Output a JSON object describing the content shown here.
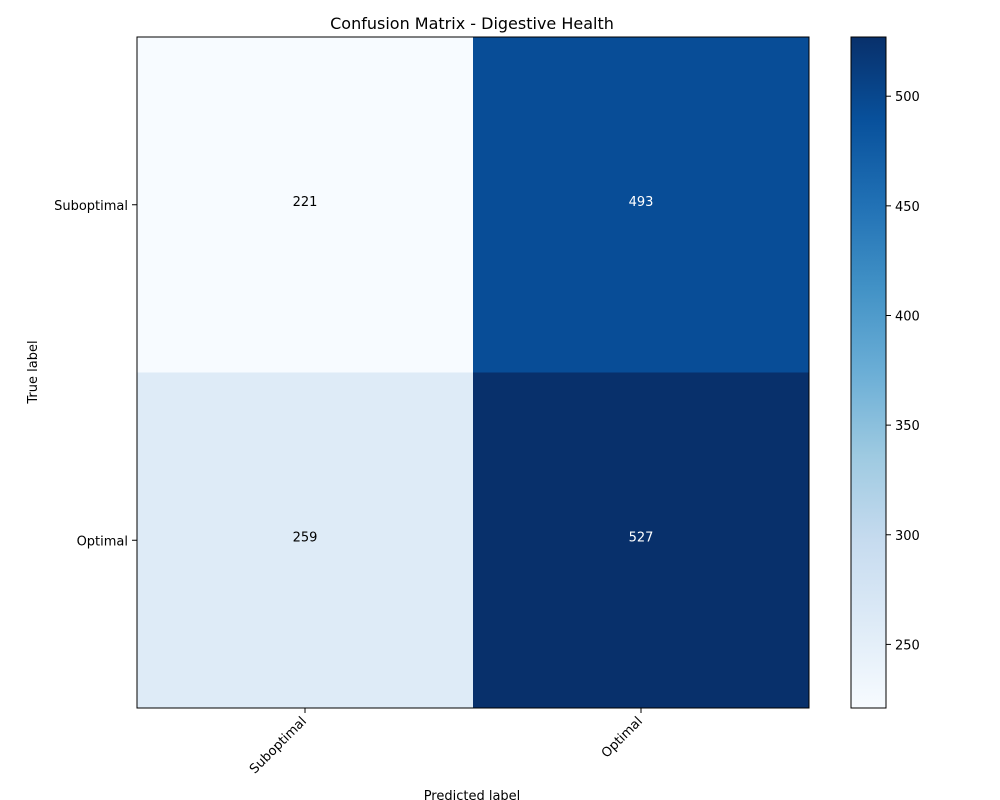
{
  "chart_data": {
    "type": "heatmap",
    "title": "Confusion Matrix - Digestive Health",
    "xlabel": "Predicted label",
    "ylabel": "True label",
    "x_categories": [
      "Suboptimal",
      "Optimal"
    ],
    "y_categories": [
      "Suboptimal",
      "Optimal"
    ],
    "values": [
      [
        221,
        493
      ],
      [
        259,
        527
      ]
    ],
    "colormap": "Blues",
    "colorbar": {
      "range": [
        221,
        527
      ],
      "ticks": [
        250,
        300,
        350,
        400,
        450,
        500
      ]
    },
    "grid": false
  }
}
